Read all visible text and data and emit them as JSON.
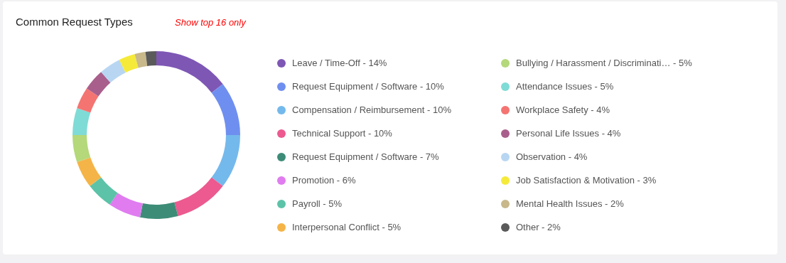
{
  "chart_data": {
    "type": "donut",
    "title": "Common Request Types",
    "subtitle": "Show top 16 only",
    "legend": "right",
    "categories": [
      "Leave / Time-Off",
      "Request Equipment / Software",
      "Compensation / Reimbursement",
      "Technical Support",
      "Request Equipment / Software",
      "Promotion",
      "Payroll",
      "Interpersonal Conflict",
      "Bullying / Harassment / Discriminati…",
      "Attendance Issues",
      "Workplace Safety",
      "Personal Life Issues",
      "Observation",
      "Job Satisfaction & Motivation",
      "Mental Health Issues",
      "Other"
    ],
    "values": [
      14,
      10,
      10,
      10,
      7,
      6,
      5,
      5,
      5,
      5,
      4,
      4,
      4,
      3,
      2,
      2
    ],
    "value_labels": [
      "14%",
      "10%",
      "10%",
      "10%",
      "7%",
      "6%",
      "5%",
      "5%",
      "5%",
      "5%",
      "4%",
      "4%",
      "4%",
      "3%",
      "2%",
      "2%"
    ],
    "colors": [
      "#7e57b5",
      "#6f8ff0",
      "#74b9ec",
      "#ec5a8f",
      "#3d8c78",
      "#e07cf0",
      "#5cc3a8",
      "#f5b447",
      "#b4d87a",
      "#7fdbd6",
      "#f47471",
      "#a95f8c",
      "#b8d6f2",
      "#f5ea3a",
      "#c8b88a",
      "#5a5a5a"
    ]
  }
}
